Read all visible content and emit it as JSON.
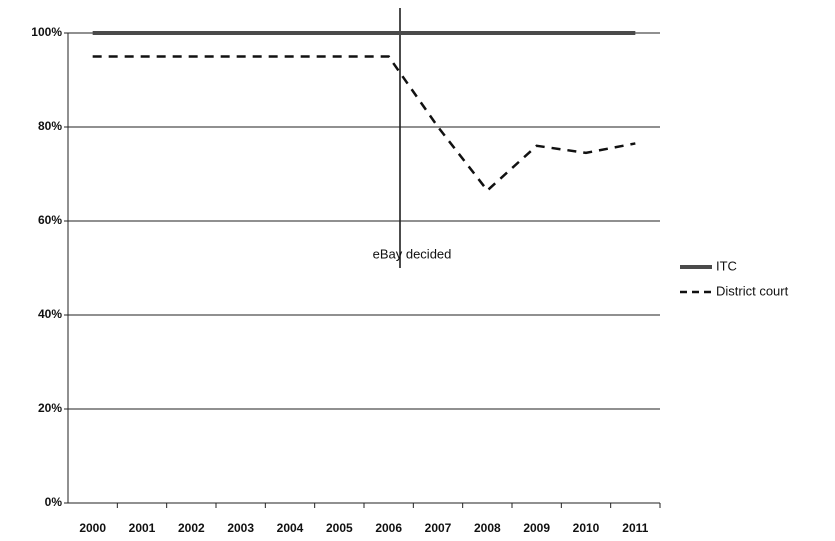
{
  "chart_data": {
    "type": "line",
    "categories": [
      "2000",
      "2001",
      "2002",
      "2003",
      "2004",
      "2005",
      "2006",
      "2007",
      "2008",
      "2009",
      "2010",
      "2011"
    ],
    "series": [
      {
        "name": "ITC",
        "color": "#4a4a4a",
        "style": "solid",
        "values": [
          100,
          100,
          100,
          100,
          100,
          100,
          100,
          100,
          100,
          100,
          100,
          100
        ]
      },
      {
        "name": "District court",
        "color": "#111111",
        "style": "dashed",
        "values": [
          95,
          95,
          95,
          95,
          95,
          95,
          95,
          80,
          66.5,
          76,
          74.5,
          76.5
        ]
      }
    ],
    "annotation": "eBay decided",
    "ylim": [
      0,
      100
    ],
    "yticks": [
      {
        "value": 0,
        "label": "0%"
      },
      {
        "value": 20,
        "label": "20%"
      },
      {
        "value": 40,
        "label": "40%"
      },
      {
        "value": 60,
        "label": "60%"
      },
      {
        "value": 80,
        "label": "80%"
      },
      {
        "value": 100,
        "label": "100%"
      }
    ],
    "grid": true,
    "legend": "right"
  }
}
